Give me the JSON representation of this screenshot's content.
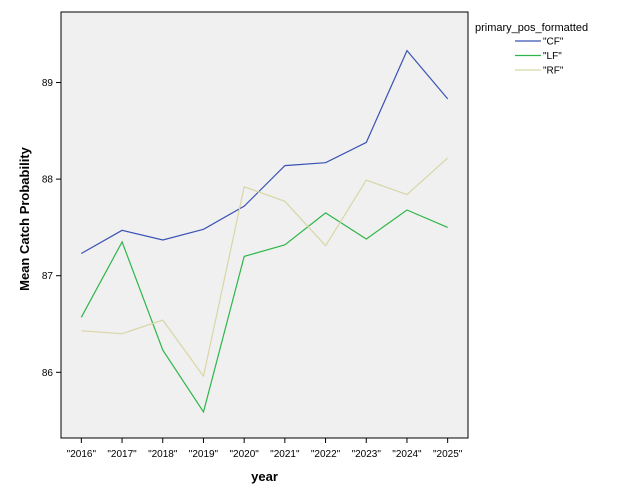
{
  "chart_data": {
    "type": "line",
    "title": "",
    "xlabel": "year",
    "ylabel": "Mean Catch Probability",
    "categories": [
      "\"2016\"",
      "\"2017\"",
      "\"2018\"",
      "\"2019\"",
      "\"2020\"",
      "\"2021\"",
      "\"2022\"",
      "\"2023\"",
      "\"2024\"",
      "\"2025\""
    ],
    "yticks": [
      86,
      87,
      88,
      89
    ],
    "ylim": [
      85.32,
      89.73
    ],
    "grid": false,
    "legend": {
      "title": "primary_pos_formatted",
      "placement": "right"
    },
    "series": [
      {
        "name": "\"CF\"",
        "color": "#3953b4",
        "values": [
          87.23,
          87.47,
          87.37,
          87.48,
          87.72,
          88.14,
          88.17,
          88.38,
          89.33,
          88.83
        ]
      },
      {
        "name": "\"LF\"",
        "color": "#2eb64a",
        "values": [
          86.57,
          87.35,
          86.23,
          85.59,
          87.2,
          87.32,
          87.65,
          87.38,
          87.68,
          87.5
        ]
      },
      {
        "name": "\"RF\"",
        "color": "#d8d6a6",
        "values": [
          86.43,
          86.4,
          86.54,
          85.96,
          87.92,
          87.77,
          87.31,
          87.99,
          87.84,
          88.22
        ]
      }
    ]
  }
}
